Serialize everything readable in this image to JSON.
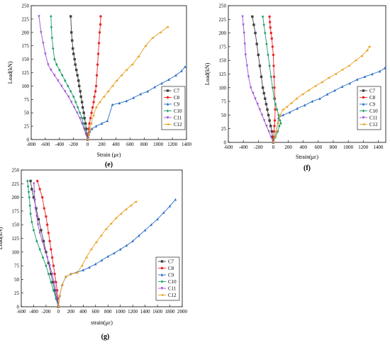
{
  "chart_data": [
    {
      "type": "line",
      "panel_label": "(e)",
      "xlabel": "Strain (με)",
      "ylabel": "Load(kN)",
      "xlim": [
        -800,
        1400
      ],
      "ylim": [
        0,
        250
      ],
      "xticks": [
        -800,
        -600,
        -400,
        -200,
        0,
        200,
        400,
        600,
        800,
        1000,
        1200,
        1400
      ],
      "yticks": [
        0,
        25,
        50,
        75,
        100,
        125,
        150,
        175,
        200,
        225,
        250
      ],
      "legend": "right",
      "series": [
        {
          "name": "C7",
          "color": "#404040",
          "marker": "square",
          "x": [
            0,
            -10,
            -20,
            -30,
            -45,
            -55,
            -70,
            -80,
            -95,
            -105,
            -120,
            -130,
            -145,
            -160,
            -175,
            -185,
            -200,
            -210,
            -220,
            -230,
            -240
          ],
          "y": [
            0,
            10,
            20,
            30,
            40,
            50,
            60,
            70,
            80,
            90,
            100,
            110,
            120,
            130,
            140,
            150,
            160,
            170,
            185,
            200,
            230
          ]
        },
        {
          "name": "C8",
          "color": "#e8262a",
          "marker": "circle",
          "x": [
            0,
            5,
            15,
            25,
            40,
            55,
            70,
            85,
            95,
            110,
            120,
            130,
            140,
            150,
            160,
            170,
            180,
            185
          ],
          "y": [
            0,
            10,
            20,
            30,
            40,
            50,
            60,
            70,
            80,
            90,
            100,
            120,
            140,
            160,
            180,
            200,
            215,
            230
          ]
        },
        {
          "name": "C9",
          "color": "#2a6dc8",
          "marker": "triangle",
          "x": [
            0,
            10,
            20,
            30,
            60,
            120,
            200,
            280,
            350,
            450,
            550,
            650,
            750,
            850,
            950,
            1050,
            1150,
            1250,
            1330,
            1380
          ],
          "y": [
            0,
            5,
            10,
            15,
            20,
            25,
            30,
            35,
            65,
            68,
            72,
            78,
            85,
            90,
            98,
            105,
            112,
            120,
            128,
            136
          ]
        },
        {
          "name": "C10",
          "color": "#1a9e6a",
          "marker": "diamond",
          "x": [
            0,
            -20,
            -40,
            -60,
            -80,
            -110,
            -140,
            -170,
            -200,
            -240,
            -280,
            -320,
            -360,
            -400,
            -440,
            -470,
            -490,
            -505,
            -515,
            -520
          ],
          "y": [
            0,
            10,
            20,
            30,
            40,
            50,
            60,
            70,
            80,
            90,
            100,
            110,
            120,
            130,
            140,
            150,
            170,
            190,
            210,
            230
          ]
        },
        {
          "name": "C11",
          "color": "#9b4fd6",
          "marker": "triangle-down",
          "x": [
            0,
            -25,
            -50,
            -80,
            -110,
            -150,
            -190,
            -230,
            -270,
            -320,
            -370,
            -420,
            -470,
            -520,
            -560,
            -600,
            -630,
            -660,
            -690
          ],
          "y": [
            0,
            10,
            20,
            30,
            40,
            50,
            60,
            70,
            80,
            90,
            100,
            110,
            120,
            130,
            140,
            160,
            180,
            200,
            230
          ]
        },
        {
          "name": "C12",
          "color": "#e8a020",
          "marker": "triangle-left",
          "x": [
            0,
            15,
            30,
            50,
            80,
            120,
            170,
            230,
            290,
            350,
            410,
            480,
            550,
            630,
            720,
            820,
            920,
            1030,
            1130
          ],
          "y": [
            0,
            10,
            20,
            30,
            45,
            60,
            70,
            80,
            90,
            100,
            110,
            120,
            130,
            140,
            155,
            175,
            190,
            200,
            210
          ]
        }
      ]
    },
    {
      "type": "line",
      "panel_label": "(f)",
      "xlabel": "Strain(με)",
      "ylabel": "Load(kN)",
      "xlim": [
        -600,
        1500
      ],
      "ylim": [
        0,
        250
      ],
      "xticks": [
        -600,
        -400,
        -200,
        0,
        200,
        400,
        600,
        800,
        1000,
        1200,
        1400
      ],
      "yticks": [
        0,
        25,
        50,
        75,
        100,
        125,
        150,
        175,
        200,
        225,
        250
      ],
      "legend": "right",
      "series": [
        {
          "name": "C7",
          "color": "#404040",
          "marker": "square",
          "x": [
            0,
            -10,
            -20,
            -35,
            -50,
            -65,
            -80,
            -95,
            -110,
            -125,
            -140,
            -160,
            -180,
            -200,
            -220,
            -240,
            -260,
            -280
          ],
          "y": [
            0,
            10,
            20,
            30,
            40,
            50,
            60,
            70,
            80,
            90,
            100,
            120,
            140,
            160,
            180,
            200,
            215,
            230
          ]
        },
        {
          "name": "C8",
          "color": "#e8262a",
          "marker": "circle",
          "x": [
            0,
            5,
            10,
            15,
            20,
            25,
            20,
            15,
            10,
            5,
            0,
            -10,
            -20,
            -30,
            -40,
            -45,
            -50
          ],
          "y": [
            0,
            10,
            20,
            30,
            40,
            60,
            80,
            100,
            120,
            140,
            160,
            175,
            190,
            200,
            210,
            220,
            230
          ]
        },
        {
          "name": "C9",
          "color": "#2a6dc8",
          "marker": "triangle",
          "x": [
            0,
            20,
            40,
            70,
            130,
            220,
            320,
            420,
            520,
            620,
            720,
            820,
            920,
            1020,
            1120,
            1220,
            1320,
            1420,
            1490
          ],
          "y": [
            0,
            10,
            20,
            45,
            50,
            55,
            62,
            68,
            75,
            80,
            88,
            95,
            102,
            108,
            115,
            120,
            125,
            130,
            136
          ]
        },
        {
          "name": "C10",
          "color": "#1a9e6a",
          "marker": "diamond",
          "x": [
            0,
            30,
            60,
            80,
            100,
            90,
            70,
            50,
            30,
            10,
            -10,
            -30,
            -50,
            -70,
            -90,
            -110,
            -125,
            -140
          ],
          "y": [
            0,
            10,
            20,
            30,
            35,
            40,
            50,
            60,
            70,
            80,
            100,
            120,
            140,
            160,
            180,
            200,
            215,
            230
          ]
        },
        {
          "name": "C11",
          "color": "#9b4fd6",
          "marker": "triangle-down",
          "x": [
            0,
            -30,
            -60,
            -90,
            -120,
            -150,
            -180,
            -210,
            -240,
            -270,
            -300,
            -330,
            -350,
            -370,
            -380,
            -390,
            -400,
            -410
          ],
          "y": [
            0,
            10,
            20,
            30,
            40,
            50,
            60,
            70,
            80,
            90,
            100,
            120,
            140,
            160,
            180,
            200,
            215,
            230
          ]
        },
        {
          "name": "C12",
          "color": "#e8a020",
          "marker": "triangle-left",
          "x": [
            0,
            20,
            40,
            60,
            90,
            130,
            180,
            240,
            310,
            390,
            470,
            560,
            650,
            740,
            830,
            920,
            1010,
            1100,
            1180,
            1250,
            1280
          ],
          "y": [
            0,
            10,
            20,
            35,
            50,
            60,
            65,
            72,
            80,
            88,
            95,
            103,
            110,
            118,
            125,
            133,
            140,
            150,
            158,
            168,
            175
          ]
        }
      ]
    },
    {
      "type": "line",
      "panel_label": "(g)",
      "xlabel": "strain(με)",
      "ylabel": "Load(kN)",
      "xlim": [
        -600,
        2000
      ],
      "ylim": [
        0,
        250
      ],
      "xticks": [
        -600,
        -400,
        -200,
        0,
        200,
        400,
        600,
        800,
        1000,
        1200,
        1400,
        1600,
        1800,
        2000
      ],
      "yticks": [
        0,
        25,
        50,
        75,
        100,
        125,
        150,
        175,
        200,
        225,
        250
      ],
      "legend": "right",
      "series": [
        {
          "name": "C7",
          "color": "#404040",
          "marker": "square",
          "x": [
            0,
            -30,
            -60,
            -90,
            -120,
            -160,
            -200,
            -240,
            -280,
            -320,
            -360,
            -400,
            -430,
            -450
          ],
          "y": [
            0,
            15,
            30,
            45,
            60,
            80,
            100,
            120,
            140,
            160,
            180,
            200,
            215,
            230
          ]
        },
        {
          "name": "C8",
          "color": "#e8262a",
          "marker": "circle",
          "x": [
            0,
            -10,
            -20,
            -40,
            -60,
            -80,
            -100,
            -120,
            -140,
            -160,
            -180,
            -200,
            -230,
            -260,
            -300,
            -340
          ],
          "y": [
            0,
            15,
            30,
            45,
            60,
            75,
            90,
            105,
            120,
            135,
            150,
            165,
            180,
            200,
            215,
            230
          ]
        },
        {
          "name": "C9",
          "color": "#2a6dc8",
          "marker": "triangle",
          "x": [
            0,
            20,
            60,
            120,
            200,
            300,
            400,
            500,
            600,
            700,
            800,
            900,
            1000,
            1100,
            1200,
            1300,
            1400,
            1500,
            1600,
            1700,
            1800,
            1890
          ],
          "y": [
            0,
            20,
            40,
            55,
            60,
            63,
            67,
            72,
            78,
            85,
            92,
            98,
            105,
            112,
            120,
            130,
            140,
            150,
            160,
            172,
            184,
            196
          ]
        },
        {
          "name": "C10",
          "color": "#1a9e6a",
          "marker": "diamond",
          "x": [
            0,
            -40,
            -80,
            -120,
            -160,
            -200,
            -250,
            -300,
            -350,
            -400,
            -430,
            -450,
            -460,
            -470,
            -480,
            -490,
            -500
          ],
          "y": [
            0,
            15,
            30,
            45,
            60,
            75,
            90,
            105,
            120,
            140,
            155,
            170,
            185,
            200,
            210,
            220,
            230
          ]
        },
        {
          "name": "C11",
          "color": "#9b4fd6",
          "marker": "triangle-down",
          "x": [
            0,
            -20,
            -40,
            -70,
            -100,
            -140,
            -180,
            -220,
            -260,
            -300,
            -330,
            -350,
            -370,
            -380,
            -390,
            -395
          ],
          "y": [
            0,
            15,
            30,
            45,
            60,
            75,
            90,
            105,
            120,
            135,
            150,
            165,
            180,
            195,
            210,
            225
          ]
        },
        {
          "name": "C12",
          "color": "#e8a020",
          "marker": "triangle-left",
          "x": [
            0,
            20,
            60,
            120,
            200,
            300,
            380,
            450,
            530,
            610,
            690,
            770,
            850,
            930,
            1010,
            1090,
            1170,
            1250
          ],
          "y": [
            0,
            20,
            40,
            55,
            60,
            62,
            75,
            90,
            105,
            118,
            130,
            142,
            152,
            162,
            170,
            178,
            185,
            192
          ]
        }
      ]
    }
  ]
}
